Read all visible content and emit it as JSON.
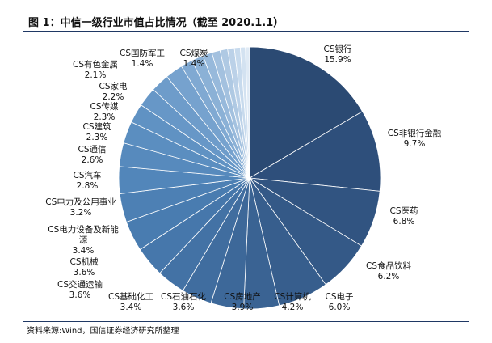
{
  "header": {
    "title": "图 1：中信一级行业市值占比情况（截至 2020.1.1）"
  },
  "footer": {
    "source": "资料来源:Wind，国信证券经济研究所整理"
  },
  "chart_data": {
    "type": "pie",
    "title": "图 1：中信一级行业市值占比情况（截至 2020.1.1）",
    "slices": [
      {
        "name": "CS银行",
        "value": 15.9,
        "label": "15.9%",
        "color": "#2b4a73"
      },
      {
        "name": "CS非银行金融",
        "value": 9.7,
        "label": "9.7%",
        "color": "#2e4f7b"
      },
      {
        "name": "CS医药",
        "value": 6.8,
        "label": "6.8%",
        "color": "#315481"
      },
      {
        "name": "CS食品饮料",
        "value": 6.2,
        "label": "6.2%",
        "color": "#345987"
      },
      {
        "name": "CS电子",
        "value": 6.0,
        "label": "6.0%",
        "color": "#375e8d"
      },
      {
        "name": "CS计算机",
        "value": 4.2,
        "label": "4.2%",
        "color": "#3a6393"
      },
      {
        "name": "CS房地产",
        "value": 3.9,
        "label": "3.9%",
        "color": "#3d6899"
      },
      {
        "name": "CS石油石化",
        "value": 3.6,
        "label": "3.6%",
        "color": "#406d9f"
      },
      {
        "name": "CS基础化工",
        "value": 3.4,
        "label": "3.4%",
        "color": "#4372a5"
      },
      {
        "name": "CS交通运输",
        "value": 3.6,
        "label": "3.6%",
        "color": "#4677ab"
      },
      {
        "name": "CS机械",
        "value": 3.6,
        "label": "3.6%",
        "color": "#497cb0"
      },
      {
        "name": "CS电力设备及新能源",
        "value": 3.4,
        "label": "3.4%",
        "color": "#4d80b4"
      },
      {
        "name": "CS电力及公用事业",
        "value": 3.2,
        "label": "3.2%",
        "color": "#5286ba"
      },
      {
        "name": "CS汽车",
        "value": 2.8,
        "label": "2.8%",
        "color": "#578abd"
      },
      {
        "name": "CS通信",
        "value": 2.6,
        "label": "2.6%",
        "color": "#5b8ec0"
      },
      {
        "name": "CS建筑",
        "value": 2.3,
        "label": "2.3%",
        "color": "#6092c3"
      },
      {
        "name": "CS传媒",
        "value": 2.3,
        "label": "2.3%",
        "color": "#6797c7"
      },
      {
        "name": "CS家电",
        "value": 2.2,
        "label": "2.2%",
        "color": "#6e9cca"
      },
      {
        "name": "CS有色金属",
        "value": 2.1,
        "label": "2.1%",
        "color": "#76a2ce"
      },
      {
        "name": "CS国防军工",
        "value": 1.4,
        "label": "1.4%",
        "color": "#80a9d2"
      },
      {
        "name": "CS煤炭",
        "value": 1.4,
        "label": "1.4%",
        "color": "#8bb1d6"
      },
      {
        "name": "",
        "value": 1.1,
        "label": "",
        "color": "#97b9db"
      },
      {
        "name": "",
        "value": 1.0,
        "label": "",
        "color": "#a3c1df"
      },
      {
        "name": "",
        "value": 0.9,
        "label": "",
        "color": "#afc9e3"
      },
      {
        "name": "",
        "value": 0.8,
        "label": "",
        "color": "#bbd1e8"
      },
      {
        "name": "",
        "value": 0.7,
        "label": "",
        "color": "#c7daed"
      },
      {
        "name": "",
        "value": 0.6,
        "label": "",
        "color": "#d3e2f1"
      },
      {
        "name": "",
        "value": 0.5,
        "label": "",
        "color": "#dfeaf5"
      }
    ],
    "legend": "none"
  }
}
